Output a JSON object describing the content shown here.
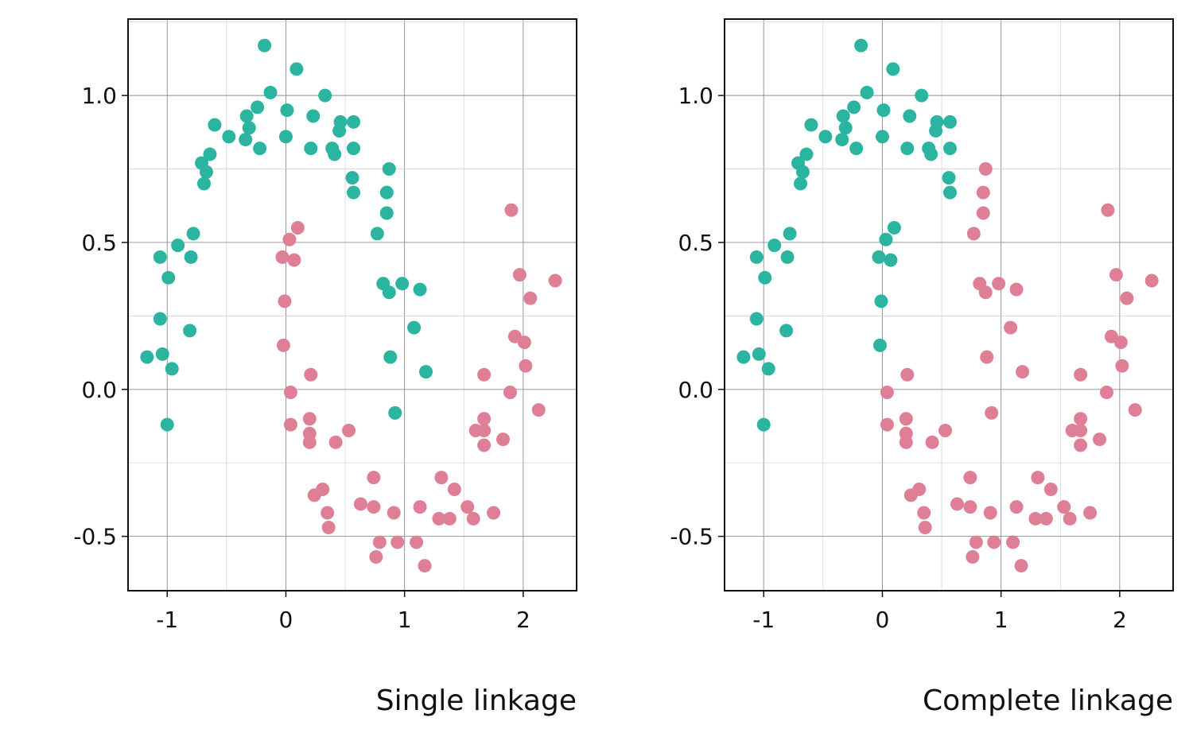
{
  "colors": {
    "cluster_a": "#2bb5a0",
    "cluster_b": "#df7f95"
  },
  "chart_data": [
    {
      "type": "scatter",
      "title": "Single linkage",
      "xlabel": "",
      "ylabel": "",
      "xlim": [
        -1.33,
        2.45
      ],
      "ylim": [
        -0.685,
        1.26
      ],
      "xticks": [
        -1,
        0,
        1,
        2
      ],
      "xtick_labels": [
        "-1",
        "0",
        "1",
        "2"
      ],
      "yticks": [
        -0.5,
        0.0,
        0.5,
        1.0
      ],
      "ytick_labels": [
        "-0.5",
        "0.0",
        "0.5",
        "1.0"
      ],
      "grid": true,
      "series": [
        {
          "color": "#2bb5a0",
          "points": [
            [
              -0.18,
              1.17
            ],
            [
              0.09,
              1.09
            ],
            [
              -0.13,
              1.01
            ],
            [
              0.33,
              1.0
            ],
            [
              -0.24,
              0.96
            ],
            [
              0.01,
              0.95
            ],
            [
              0.23,
              0.93
            ],
            [
              -0.33,
              0.93
            ],
            [
              0.46,
              0.91
            ],
            [
              0.57,
              0.91
            ],
            [
              -0.6,
              0.9
            ],
            [
              -0.31,
              0.89
            ],
            [
              0.45,
              0.88
            ],
            [
              -0.48,
              0.86
            ],
            [
              0.0,
              0.86
            ],
            [
              -0.34,
              0.85
            ],
            [
              -0.22,
              0.82
            ],
            [
              0.21,
              0.82
            ],
            [
              0.39,
              0.82
            ],
            [
              0.57,
              0.82
            ],
            [
              0.41,
              0.8
            ],
            [
              -0.64,
              0.8
            ],
            [
              -0.71,
              0.77
            ],
            [
              -0.67,
              0.74
            ],
            [
              0.87,
              0.75
            ],
            [
              0.56,
              0.72
            ],
            [
              -0.69,
              0.7
            ],
            [
              0.57,
              0.67
            ],
            [
              0.85,
              0.67
            ],
            [
              0.85,
              0.6
            ],
            [
              0.77,
              0.53
            ],
            [
              -0.78,
              0.53
            ],
            [
              -0.91,
              0.49
            ],
            [
              -0.8,
              0.45
            ],
            [
              -1.06,
              0.45
            ],
            [
              -0.99,
              0.38
            ],
            [
              0.82,
              0.36
            ],
            [
              0.98,
              0.36
            ],
            [
              0.87,
              0.33
            ],
            [
              1.13,
              0.34
            ],
            [
              -1.06,
              0.24
            ],
            [
              -0.81,
              0.2
            ],
            [
              1.08,
              0.21
            ],
            [
              -1.04,
              0.12
            ],
            [
              -1.17,
              0.11
            ],
            [
              0.88,
              0.11
            ],
            [
              -0.96,
              0.07
            ],
            [
              1.18,
              0.06
            ],
            [
              0.92,
              -0.08
            ],
            [
              -1.0,
              -0.12
            ]
          ]
        },
        {
          "color": "#df7f95",
          "points": [
            [
              1.9,
              0.61
            ],
            [
              0.1,
              0.55
            ],
            [
              0.03,
              0.51
            ],
            [
              -0.03,
              0.45
            ],
            [
              0.07,
              0.44
            ],
            [
              1.97,
              0.39
            ],
            [
              2.27,
              0.37
            ],
            [
              2.06,
              0.31
            ],
            [
              -0.01,
              0.3
            ],
            [
              1.93,
              0.18
            ],
            [
              2.01,
              0.16
            ],
            [
              -0.02,
              0.15
            ],
            [
              2.02,
              0.08
            ],
            [
              0.21,
              0.05
            ],
            [
              1.67,
              0.05
            ],
            [
              1.89,
              -0.01
            ],
            [
              0.04,
              -0.01
            ],
            [
              2.13,
              -0.07
            ],
            [
              0.2,
              -0.1
            ],
            [
              1.67,
              -0.1
            ],
            [
              0.04,
              -0.12
            ],
            [
              0.2,
              -0.15
            ],
            [
              0.53,
              -0.14
            ],
            [
              1.6,
              -0.14
            ],
            [
              1.67,
              -0.14
            ],
            [
              1.83,
              -0.17
            ],
            [
              0.2,
              -0.18
            ],
            [
              0.42,
              -0.18
            ],
            [
              1.67,
              -0.19
            ],
            [
              0.74,
              -0.3
            ],
            [
              1.31,
              -0.3
            ],
            [
              0.31,
              -0.34
            ],
            [
              1.42,
              -0.34
            ],
            [
              0.24,
              -0.36
            ],
            [
              0.63,
              -0.39
            ],
            [
              0.74,
              -0.4
            ],
            [
              1.13,
              -0.4
            ],
            [
              1.53,
              -0.4
            ],
            [
              0.35,
              -0.42
            ],
            [
              0.91,
              -0.42
            ],
            [
              1.75,
              -0.42
            ],
            [
              1.29,
              -0.44
            ],
            [
              1.38,
              -0.44
            ],
            [
              1.58,
              -0.44
            ],
            [
              0.36,
              -0.47
            ],
            [
              0.79,
              -0.52
            ],
            [
              0.94,
              -0.52
            ],
            [
              1.1,
              -0.52
            ],
            [
              0.76,
              -0.57
            ],
            [
              1.17,
              -0.6
            ]
          ]
        }
      ]
    },
    {
      "type": "scatter",
      "title": "Complete linkage",
      "xlabel": "",
      "ylabel": "",
      "xlim": [
        -1.33,
        2.45
      ],
      "ylim": [
        -0.685,
        1.26
      ],
      "xticks": [
        -1,
        0,
        1,
        2
      ],
      "xtick_labels": [
        "-1",
        "0",
        "1",
        "2"
      ],
      "yticks": [
        -0.5,
        0.0,
        0.5,
        1.0
      ],
      "ytick_labels": [
        "-0.5",
        "0.0",
        "0.5",
        "1.0"
      ],
      "grid": true,
      "series": [
        {
          "color": "#2bb5a0",
          "points": [
            [
              -0.18,
              1.17
            ],
            [
              0.09,
              1.09
            ],
            [
              -0.13,
              1.01
            ],
            [
              0.33,
              1.0
            ],
            [
              -0.24,
              0.96
            ],
            [
              0.01,
              0.95
            ],
            [
              0.23,
              0.93
            ],
            [
              -0.33,
              0.93
            ],
            [
              0.46,
              0.91
            ],
            [
              0.57,
              0.91
            ],
            [
              -0.6,
              0.9
            ],
            [
              -0.31,
              0.89
            ],
            [
              0.45,
              0.88
            ],
            [
              -0.48,
              0.86
            ],
            [
              0.0,
              0.86
            ],
            [
              -0.34,
              0.85
            ],
            [
              -0.22,
              0.82
            ],
            [
              0.21,
              0.82
            ],
            [
              0.39,
              0.82
            ],
            [
              0.57,
              0.82
            ],
            [
              0.41,
              0.8
            ],
            [
              -0.64,
              0.8
            ],
            [
              -0.71,
              0.77
            ],
            [
              -0.67,
              0.74
            ],
            [
              0.56,
              0.72
            ],
            [
              -0.69,
              0.7
            ],
            [
              0.57,
              0.67
            ],
            [
              -0.78,
              0.53
            ],
            [
              -0.91,
              0.49
            ],
            [
              -0.8,
              0.45
            ],
            [
              -1.06,
              0.45
            ],
            [
              -0.99,
              0.38
            ],
            [
              -1.06,
              0.24
            ],
            [
              -0.81,
              0.2
            ],
            [
              -1.04,
              0.12
            ],
            [
              -1.17,
              0.11
            ],
            [
              -0.96,
              0.07
            ],
            [
              -1.0,
              -0.12
            ],
            [
              0.1,
              0.55
            ],
            [
              0.03,
              0.51
            ],
            [
              -0.03,
              0.45
            ],
            [
              0.07,
              0.44
            ],
            [
              -0.01,
              0.3
            ],
            [
              -0.02,
              0.15
            ]
          ]
        },
        {
          "color": "#df7f95",
          "points": [
            [
              0.87,
              0.75
            ],
            [
              0.85,
              0.67
            ],
            [
              0.85,
              0.6
            ],
            [
              0.77,
              0.53
            ],
            [
              0.82,
              0.36
            ],
            [
              0.98,
              0.36
            ],
            [
              0.87,
              0.33
            ],
            [
              1.13,
              0.34
            ],
            [
              1.08,
              0.21
            ],
            [
              0.88,
              0.11
            ],
            [
              1.18,
              0.06
            ],
            [
              0.92,
              -0.08
            ],
            [
              1.9,
              0.61
            ],
            [
              1.97,
              0.39
            ],
            [
              2.27,
              0.37
            ],
            [
              2.06,
              0.31
            ],
            [
              1.93,
              0.18
            ],
            [
              2.01,
              0.16
            ],
            [
              2.02,
              0.08
            ],
            [
              0.21,
              0.05
            ],
            [
              1.67,
              0.05
            ],
            [
              1.89,
              -0.01
            ],
            [
              0.04,
              -0.01
            ],
            [
              2.13,
              -0.07
            ],
            [
              0.2,
              -0.1
            ],
            [
              1.67,
              -0.1
            ],
            [
              0.04,
              -0.12
            ],
            [
              0.2,
              -0.15
            ],
            [
              0.53,
              -0.14
            ],
            [
              1.6,
              -0.14
            ],
            [
              1.67,
              -0.14
            ],
            [
              1.83,
              -0.17
            ],
            [
              0.2,
              -0.18
            ],
            [
              0.42,
              -0.18
            ],
            [
              1.67,
              -0.19
            ],
            [
              0.74,
              -0.3
            ],
            [
              1.31,
              -0.3
            ],
            [
              0.31,
              -0.34
            ],
            [
              1.42,
              -0.34
            ],
            [
              0.24,
              -0.36
            ],
            [
              0.63,
              -0.39
            ],
            [
              0.74,
              -0.4
            ],
            [
              1.13,
              -0.4
            ],
            [
              1.53,
              -0.4
            ],
            [
              0.35,
              -0.42
            ],
            [
              0.91,
              -0.42
            ],
            [
              1.75,
              -0.42
            ],
            [
              1.29,
              -0.44
            ],
            [
              1.38,
              -0.44
            ],
            [
              1.58,
              -0.44
            ],
            [
              0.36,
              -0.47
            ],
            [
              0.79,
              -0.52
            ],
            [
              0.94,
              -0.52
            ],
            [
              1.1,
              -0.52
            ],
            [
              0.76,
              -0.57
            ],
            [
              1.17,
              -0.6
            ]
          ]
        }
      ]
    }
  ]
}
